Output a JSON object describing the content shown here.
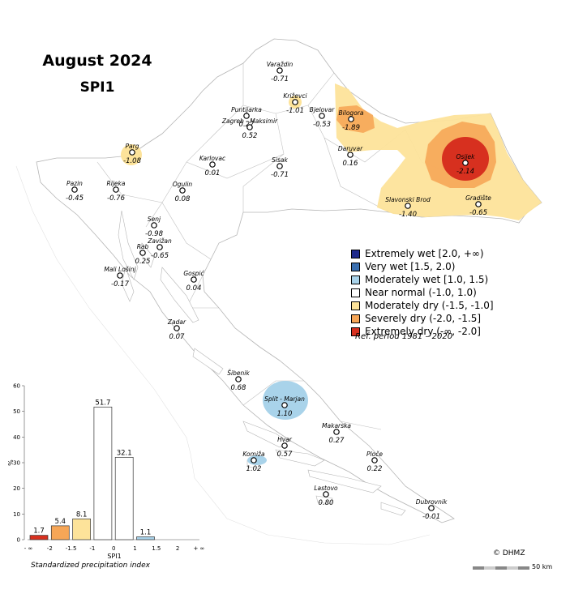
{
  "title": "August 2024",
  "subtitle": "SPI1",
  "legend": {
    "items": [
      {
        "label": "Extremely wet [2.0, +∞)",
        "color": "#1f2a8c"
      },
      {
        "label": "Very wet [1.5, 2.0)",
        "color": "#3a6fb0"
      },
      {
        "label": "Moderately wet [1.0, 1.5)",
        "color": "#a9d3ea"
      },
      {
        "label": "Near normal (-1.0, 1.0)",
        "color": "#ffffff"
      },
      {
        "label": "Moderately dry (-1.5, -1.0]",
        "color": "#fde39a"
      },
      {
        "label": "Severely dry (-2.0, -1.5]",
        "color": "#f6a657"
      },
      {
        "label": "Extremely dry (-∞, -2.0]",
        "color": "#d7301f"
      }
    ],
    "ref_period": "Ref. period 1981 – 2020"
  },
  "stations": [
    {
      "name": "Varaždin",
      "value": "-0.71"
    },
    {
      "name": "Križevci",
      "value": "-1.01"
    },
    {
      "name": "Bjelovar",
      "value": "-0.53"
    },
    {
      "name": "Bilogora",
      "value": "-1.89"
    },
    {
      "name": "Puntijarka",
      "value": "0.27"
    },
    {
      "name": "Zagreb - Maksimir",
      "value": "0.52"
    },
    {
      "name": "Daruvar",
      "value": "0.16"
    },
    {
      "name": "Osijek",
      "value": "-2.14"
    },
    {
      "name": "Parg",
      "value": "-1.08"
    },
    {
      "name": "Karlovac",
      "value": "0.01"
    },
    {
      "name": "Sisak",
      "value": "-0.71"
    },
    {
      "name": "Pazin",
      "value": "-0.45"
    },
    {
      "name": "Rijeka",
      "value": "-0.76"
    },
    {
      "name": "Ogulin",
      "value": "0.08"
    },
    {
      "name": "Slavonski Brod",
      "value": "-1.40"
    },
    {
      "name": "Gradište",
      "value": "-0.65"
    },
    {
      "name": "Senj",
      "value": "-0.98"
    },
    {
      "name": "Rab",
      "value": "0.25"
    },
    {
      "name": "Zavižan",
      "value": "-0.65"
    },
    {
      "name": "Mali Lošinj",
      "value": "-0.17"
    },
    {
      "name": "Gospić",
      "value": "0.04"
    },
    {
      "name": "Zadar",
      "value": "0.07"
    },
    {
      "name": "Šibenik",
      "value": "0.68"
    },
    {
      "name": "Split - Marjan",
      "value": "1.10"
    },
    {
      "name": "Makarska",
      "value": "0.27"
    },
    {
      "name": "Hvar",
      "value": "0.57"
    },
    {
      "name": "Komiža",
      "value": "1.02"
    },
    {
      "name": "Ploče",
      "value": "0.22"
    },
    {
      "name": "Lastovo",
      "value": "0.80"
    },
    {
      "name": "Dubrovnik",
      "value": "-0.01"
    }
  ],
  "chart_data": {
    "type": "bar",
    "title": "",
    "xlabel": "SPI1",
    "ylabel": "%",
    "ylim": [
      0,
      60
    ],
    "yticks": [
      "0",
      "10",
      "20",
      "30",
      "40",
      "50",
      "60"
    ],
    "xticks": [
      "- ∞",
      "-2",
      "-1.5",
      "-1",
      "0",
      "1",
      "1.5",
      "2",
      "+ ∞"
    ],
    "categories": [
      "Extremely dry",
      "Severely dry",
      "Moderately dry",
      "Near normal (-1.0, 0)",
      "Near normal (0, 1.0)",
      "Moderately wet",
      "Very wet",
      "Extremely wet"
    ],
    "values": [
      1.7,
      5.4,
      8.1,
      51.7,
      32.1,
      1.1,
      0,
      0
    ],
    "value_labels": [
      "1.7",
      "5.4",
      "8.1",
      "51.7",
      "32.1",
      "1.1",
      "",
      ""
    ],
    "colors": [
      "#d7301f",
      "#f6a657",
      "#fde39a",
      "#ffffff",
      "#ffffff",
      "#a9d3ea",
      "#3a6fb0",
      "#1f2a8c"
    ],
    "caption": "Standardized precipitation index"
  },
  "copyright": "© DHMZ",
  "scale_label": "50 km"
}
